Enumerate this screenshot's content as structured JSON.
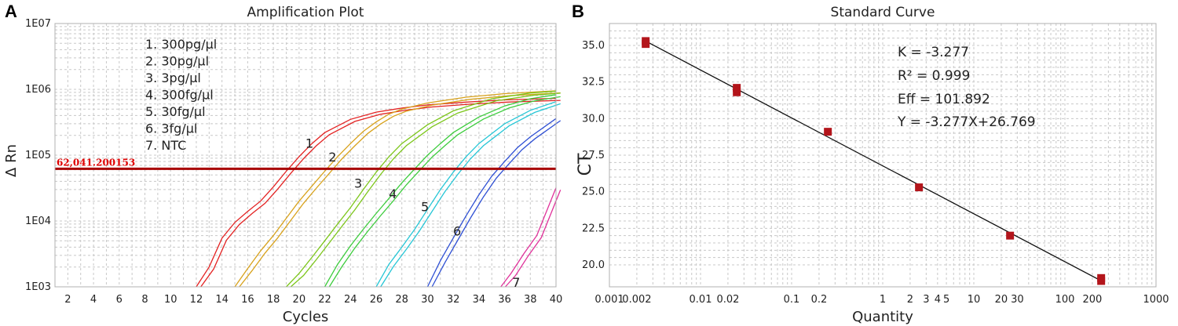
{
  "panels": {
    "a": {
      "letter": "A",
      "title": "Amplification Plot",
      "xlabel": "Cycles",
      "ylabel": "Δ Rn",
      "xticks": [
        "2",
        "4",
        "6",
        "8",
        "10",
        "12",
        "14",
        "16",
        "18",
        "20",
        "22",
        "24",
        "26",
        "28",
        "30",
        "32",
        "34",
        "36",
        "38",
        "40"
      ],
      "yticks": [
        "1E03",
        "1E04",
        "1E05",
        "1E06",
        "1E07"
      ],
      "legend": [
        "1. 300pg/μl",
        "2. 30pg/μl",
        "3. 3pg/μl",
        "4. 300fg/μl",
        "5. 30fg/μl",
        "6. 3fg/μl",
        "7. NTC"
      ],
      "threshold_label": "62,041.200153",
      "curve_labels": [
        "1",
        "2",
        "3",
        "4",
        "5",
        "6",
        "7"
      ]
    },
    "b": {
      "letter": "B",
      "title": "Standard Curve",
      "xlabel": "Quantity",
      "ylabel": "CT",
      "xticks": [
        "0.001",
        "0.002",
        "0.01",
        "0.02",
        "0.1",
        "0.2",
        "1",
        "2",
        "3",
        "4",
        "5",
        "10",
        "20",
        "30",
        "100",
        "200",
        "1000"
      ],
      "yticks": [
        "20.0",
        "22.5",
        "25.0",
        "27.5",
        "30.0",
        "32.5",
        "35.0"
      ],
      "stats": {
        "k": "K = -3.277",
        "r2": "R² = 0.999",
        "eff": "Eff = 101.892",
        "eq": "Y = -3.277X+26.769"
      }
    }
  },
  "chart_data": [
    {
      "type": "line",
      "title": "Amplification Plot",
      "xlabel": "Cycles",
      "ylabel": "Δ Rn",
      "xlim": [
        1,
        40
      ],
      "ylim": [
        1000,
        10000000
      ],
      "y_scale": "log",
      "grid": true,
      "legend_position": "top-left",
      "threshold": 62041.200153,
      "threshold_color": "#a80000",
      "series": [
        {
          "name": "1. 300pg/μl",
          "color": "#e32222",
          "x": [
            12,
            13,
            14,
            15,
            16,
            17,
            18,
            19,
            20,
            21,
            22,
            24,
            26,
            28,
            30,
            33,
            36,
            40
          ],
          "y": [
            1000,
            2000,
            5500,
            9500,
            14000,
            20000,
            33000,
            57000,
            95000,
            150000,
            220000,
            350000,
            450000,
            520000,
            580000,
            640000,
            690000,
            730000
          ]
        },
        {
          "name": "2. 30pg/μl",
          "color": "#d8a21c",
          "x": [
            15,
            16,
            17,
            18,
            19,
            20,
            21,
            22,
            23,
            24,
            25,
            26,
            27,
            28,
            30,
            33,
            36,
            40
          ],
          "y": [
            1000,
            1900,
            3500,
            6000,
            11000,
            20000,
            34000,
            57000,
            95000,
            150000,
            230000,
            320000,
            420000,
            500000,
            620000,
            760000,
            860000,
            950000
          ]
        },
        {
          "name": "3. 3pg/μl",
          "color": "#7cc61a",
          "x": [
            19,
            20,
            21,
            22,
            23,
            24,
            25,
            26,
            27,
            28,
            30,
            32,
            35,
            38,
            40
          ],
          "y": [
            1000,
            1600,
            2800,
            5000,
            9000,
            16000,
            30000,
            55000,
            95000,
            150000,
            290000,
            470000,
            720000,
            880000,
            940000
          ]
        },
        {
          "name": "4. 300fg/μl",
          "color": "#3dcc3d",
          "x": [
            22,
            23,
            24,
            25,
            26,
            27,
            28,
            29,
            30,
            31,
            32,
            34,
            36,
            38,
            40
          ],
          "y": [
            1000,
            2200,
            4200,
            7500,
            13000,
            22000,
            38000,
            62000,
            100000,
            150000,
            220000,
            380000,
            560000,
            720000,
            830000
          ]
        },
        {
          "name": "5. 30fg/μl",
          "color": "#26c6d6",
          "x": [
            26,
            27,
            28,
            29,
            30,
            31,
            32,
            33,
            34,
            36,
            38,
            40
          ],
          "y": [
            1000,
            2200,
            4000,
            7500,
            15000,
            30000,
            55000,
            95000,
            150000,
            300000,
            480000,
            650000
          ]
        },
        {
          "name": "6. 3fg/μl",
          "color": "#2f50d4",
          "x": [
            30,
            31,
            32,
            33,
            34,
            35,
            36,
            37,
            38,
            40
          ],
          "y": [
            1000,
            2500,
            5500,
            12000,
            25000,
            48000,
            80000,
            130000,
            190000,
            360000
          ]
        },
        {
          "name": "7. NTC",
          "color": "#e0319a",
          "x": [
            35.7,
            36.5,
            37.5,
            38.5,
            40
          ],
          "y": [
            1000,
            1600,
            3200,
            6000,
            32000
          ]
        }
      ]
    },
    {
      "type": "scatter",
      "title": "Standard Curve",
      "xlabel": "Quantity",
      "ylabel": "CT",
      "x_scale": "log",
      "xlim": [
        0.001,
        1000
      ],
      "ylim": [
        18.5,
        36.5
      ],
      "grid": true,
      "points": [
        {
          "x": 0.0025,
          "y": 35.1
        },
        {
          "x": 0.0025,
          "y": 35.3
        },
        {
          "x": 0.025,
          "y": 31.8
        },
        {
          "x": 0.025,
          "y": 32.1
        },
        {
          "x": 0.25,
          "y": 29.1
        },
        {
          "x": 2.5,
          "y": 25.3
        },
        {
          "x": 25,
          "y": 22.0
        },
        {
          "x": 250,
          "y": 18.9
        },
        {
          "x": 250,
          "y": 19.1
        }
      ],
      "fit": {
        "slope": -3.277,
        "intercept": 26.769,
        "r2": 0.999,
        "efficiency": 101.892
      },
      "point_color": "#b3151b"
    }
  ]
}
